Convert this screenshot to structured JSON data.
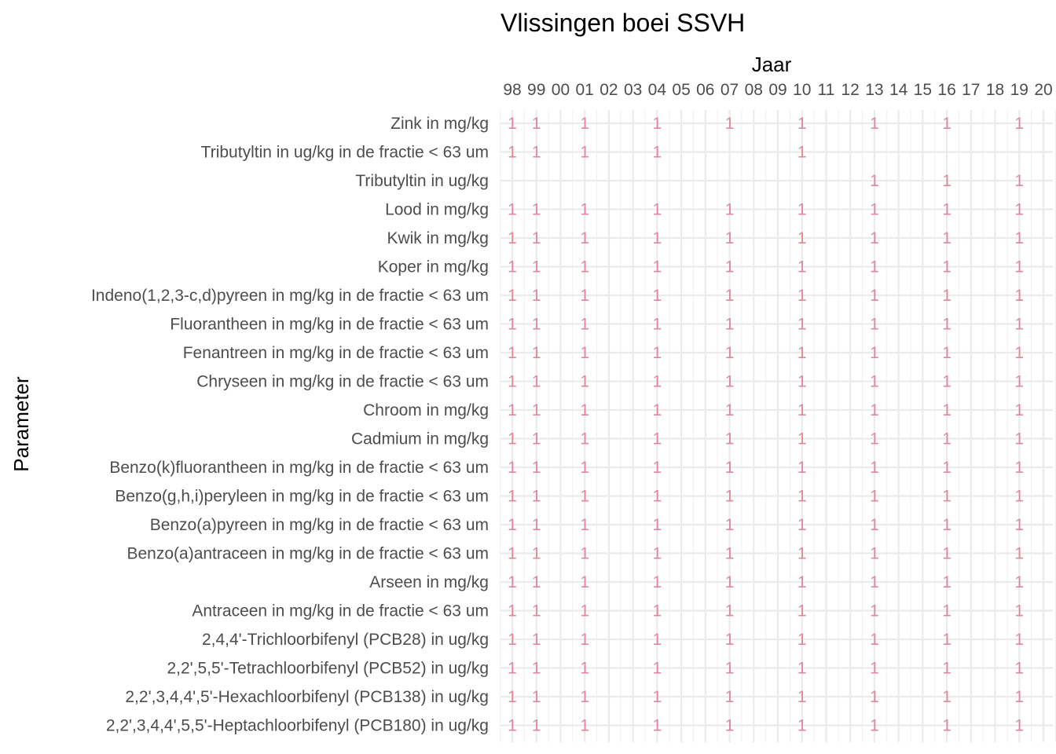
{
  "chart_data": {
    "type": "table",
    "title": "Vlissingen boei SSVH",
    "xlabel": "Jaar",
    "ylabel": "Parameter",
    "x_ticks": [
      "98",
      "99",
      "00",
      "01",
      "02",
      "03",
      "04",
      "05",
      "06",
      "07",
      "08",
      "09",
      "10",
      "11",
      "12",
      "13",
      "14",
      "15",
      "16",
      "17",
      "18",
      "19",
      "20"
    ],
    "x_tick_years": [
      1998,
      1999,
      2000,
      2001,
      2002,
      2003,
      2004,
      2005,
      2006,
      2007,
      2008,
      2009,
      2010,
      2011,
      2012,
      2013,
      2014,
      2015,
      2016,
      2017,
      2018,
      2019,
      2020
    ],
    "xlim": [
      1998,
      2020
    ],
    "grid": true,
    "legend": "none",
    "cell_color": "#e0879b",
    "parameters": [
      {
        "name": "Zink in mg/kg",
        "counts": [
          [
            1998,
            1
          ],
          [
            1999,
            1
          ],
          [
            2001,
            1
          ],
          [
            2004,
            1
          ],
          [
            2007,
            1
          ],
          [
            2010,
            1
          ],
          [
            2013,
            1
          ],
          [
            2016,
            1
          ],
          [
            2019,
            1
          ]
        ]
      },
      {
        "name": "Tributyltin in ug/kg in de fractie < 63 um",
        "counts": [
          [
            1998,
            1
          ],
          [
            1999,
            1
          ],
          [
            2001,
            1
          ],
          [
            2004,
            1
          ],
          [
            2010,
            1
          ]
        ]
      },
      {
        "name": "Tributyltin in ug/kg",
        "counts": [
          [
            2013,
            1
          ],
          [
            2016,
            1
          ],
          [
            2019,
            1
          ]
        ]
      },
      {
        "name": "Lood in mg/kg",
        "counts": [
          [
            1998,
            1
          ],
          [
            1999,
            1
          ],
          [
            2001,
            1
          ],
          [
            2004,
            1
          ],
          [
            2007,
            1
          ],
          [
            2010,
            1
          ],
          [
            2013,
            1
          ],
          [
            2016,
            1
          ],
          [
            2019,
            1
          ]
        ]
      },
      {
        "name": "Kwik in mg/kg",
        "counts": [
          [
            1998,
            1
          ],
          [
            1999,
            1
          ],
          [
            2001,
            1
          ],
          [
            2004,
            1
          ],
          [
            2007,
            1
          ],
          [
            2010,
            1
          ],
          [
            2013,
            1
          ],
          [
            2016,
            1
          ],
          [
            2019,
            1
          ]
        ]
      },
      {
        "name": "Koper in mg/kg",
        "counts": [
          [
            1998,
            1
          ],
          [
            1999,
            1
          ],
          [
            2001,
            1
          ],
          [
            2004,
            1
          ],
          [
            2007,
            1
          ],
          [
            2010,
            1
          ],
          [
            2013,
            1
          ],
          [
            2016,
            1
          ],
          [
            2019,
            1
          ]
        ]
      },
      {
        "name": "Indeno(1,2,3-c,d)pyreen in mg/kg in de fractie < 63 um",
        "counts": [
          [
            1998,
            1
          ],
          [
            1999,
            1
          ],
          [
            2001,
            1
          ],
          [
            2004,
            1
          ],
          [
            2007,
            1
          ],
          [
            2010,
            1
          ],
          [
            2013,
            1
          ],
          [
            2016,
            1
          ],
          [
            2019,
            1
          ]
        ]
      },
      {
        "name": "Fluorantheen in mg/kg in de fractie < 63 um",
        "counts": [
          [
            1998,
            1
          ],
          [
            1999,
            1
          ],
          [
            2001,
            1
          ],
          [
            2004,
            1
          ],
          [
            2007,
            1
          ],
          [
            2010,
            1
          ],
          [
            2013,
            1
          ],
          [
            2016,
            1
          ],
          [
            2019,
            1
          ]
        ]
      },
      {
        "name": "Fenantreen in mg/kg in de fractie < 63 um",
        "counts": [
          [
            1998,
            1
          ],
          [
            1999,
            1
          ],
          [
            2001,
            1
          ],
          [
            2004,
            1
          ],
          [
            2007,
            1
          ],
          [
            2010,
            1
          ],
          [
            2013,
            1
          ],
          [
            2016,
            1
          ],
          [
            2019,
            1
          ]
        ]
      },
      {
        "name": "Chryseen in mg/kg in de fractie < 63 um",
        "counts": [
          [
            1998,
            1
          ],
          [
            1999,
            1
          ],
          [
            2001,
            1
          ],
          [
            2004,
            1
          ],
          [
            2007,
            1
          ],
          [
            2010,
            1
          ],
          [
            2013,
            1
          ],
          [
            2016,
            1
          ],
          [
            2019,
            1
          ]
        ]
      },
      {
        "name": "Chroom in mg/kg",
        "counts": [
          [
            1998,
            1
          ],
          [
            1999,
            1
          ],
          [
            2001,
            1
          ],
          [
            2004,
            1
          ],
          [
            2007,
            1
          ],
          [
            2010,
            1
          ],
          [
            2013,
            1
          ],
          [
            2016,
            1
          ],
          [
            2019,
            1
          ]
        ]
      },
      {
        "name": "Cadmium in mg/kg",
        "counts": [
          [
            1998,
            1
          ],
          [
            1999,
            1
          ],
          [
            2001,
            1
          ],
          [
            2004,
            1
          ],
          [
            2007,
            1
          ],
          [
            2010,
            1
          ],
          [
            2013,
            1
          ],
          [
            2016,
            1
          ],
          [
            2019,
            1
          ]
        ]
      },
      {
        "name": "Benzo(k)fluorantheen in mg/kg in de fractie < 63 um",
        "counts": [
          [
            1998,
            1
          ],
          [
            1999,
            1
          ],
          [
            2001,
            1
          ],
          [
            2004,
            1
          ],
          [
            2007,
            1
          ],
          [
            2010,
            1
          ],
          [
            2013,
            1
          ],
          [
            2016,
            1
          ],
          [
            2019,
            1
          ]
        ]
      },
      {
        "name": "Benzo(g,h,i)peryleen in mg/kg in de fractie < 63 um",
        "counts": [
          [
            1998,
            1
          ],
          [
            1999,
            1
          ],
          [
            2001,
            1
          ],
          [
            2004,
            1
          ],
          [
            2007,
            1
          ],
          [
            2010,
            1
          ],
          [
            2013,
            1
          ],
          [
            2016,
            1
          ],
          [
            2019,
            1
          ]
        ]
      },
      {
        "name": "Benzo(a)pyreen in mg/kg in de fractie < 63 um",
        "counts": [
          [
            1998,
            1
          ],
          [
            1999,
            1
          ],
          [
            2001,
            1
          ],
          [
            2004,
            1
          ],
          [
            2007,
            1
          ],
          [
            2010,
            1
          ],
          [
            2013,
            1
          ],
          [
            2016,
            1
          ],
          [
            2019,
            1
          ]
        ]
      },
      {
        "name": "Benzo(a)antraceen in mg/kg in de fractie < 63 um",
        "counts": [
          [
            1998,
            1
          ],
          [
            1999,
            1
          ],
          [
            2001,
            1
          ],
          [
            2004,
            1
          ],
          [
            2007,
            1
          ],
          [
            2010,
            1
          ],
          [
            2013,
            1
          ],
          [
            2016,
            1
          ],
          [
            2019,
            1
          ]
        ]
      },
      {
        "name": "Arseen in mg/kg",
        "counts": [
          [
            1998,
            1
          ],
          [
            1999,
            1
          ],
          [
            2001,
            1
          ],
          [
            2004,
            1
          ],
          [
            2007,
            1
          ],
          [
            2010,
            1
          ],
          [
            2013,
            1
          ],
          [
            2016,
            1
          ],
          [
            2019,
            1
          ]
        ]
      },
      {
        "name": "Antraceen in mg/kg in de fractie < 63 um",
        "counts": [
          [
            1998,
            1
          ],
          [
            1999,
            1
          ],
          [
            2001,
            1
          ],
          [
            2004,
            1
          ],
          [
            2007,
            1
          ],
          [
            2010,
            1
          ],
          [
            2013,
            1
          ],
          [
            2016,
            1
          ],
          [
            2019,
            1
          ]
        ]
      },
      {
        "name": "2,4,4'-Trichloorbifenyl (PCB28) in ug/kg",
        "counts": [
          [
            1998,
            1
          ],
          [
            1999,
            1
          ],
          [
            2001,
            1
          ],
          [
            2004,
            1
          ],
          [
            2007,
            1
          ],
          [
            2010,
            1
          ],
          [
            2013,
            1
          ],
          [
            2016,
            1
          ],
          [
            2019,
            1
          ]
        ]
      },
      {
        "name": "2,2',5,5'-Tetrachloorbifenyl (PCB52) in ug/kg",
        "counts": [
          [
            1998,
            1
          ],
          [
            1999,
            1
          ],
          [
            2001,
            1
          ],
          [
            2004,
            1
          ],
          [
            2007,
            1
          ],
          [
            2010,
            1
          ],
          [
            2013,
            1
          ],
          [
            2016,
            1
          ],
          [
            2019,
            1
          ]
        ]
      },
      {
        "name": "2,2',3,4,4',5'-Hexachloorbifenyl (PCB138) in ug/kg",
        "counts": [
          [
            1998,
            1
          ],
          [
            1999,
            1
          ],
          [
            2001,
            1
          ],
          [
            2004,
            1
          ],
          [
            2007,
            1
          ],
          [
            2010,
            1
          ],
          [
            2013,
            1
          ],
          [
            2016,
            1
          ],
          [
            2019,
            1
          ]
        ]
      },
      {
        "name": "2,2',3,4,4',5,5'-Heptachloorbifenyl (PCB180) in ug/kg",
        "counts": [
          [
            1998,
            1
          ],
          [
            1999,
            1
          ],
          [
            2001,
            1
          ],
          [
            2004,
            1
          ],
          [
            2007,
            1
          ],
          [
            2010,
            1
          ],
          [
            2013,
            1
          ],
          [
            2016,
            1
          ],
          [
            2019,
            1
          ]
        ]
      }
    ]
  }
}
